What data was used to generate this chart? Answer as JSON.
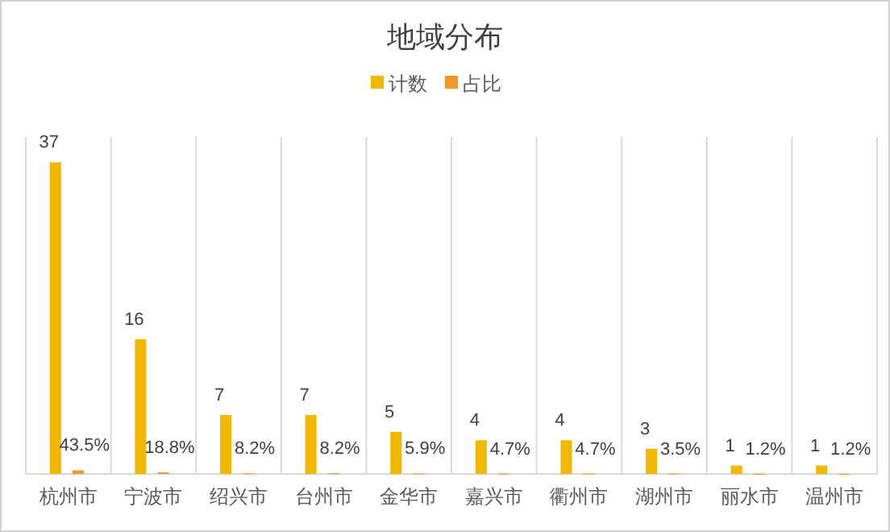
{
  "chart_data": {
    "type": "bar",
    "title": "地域分布",
    "categories": [
      "杭州市",
      "宁波市",
      "绍兴市",
      "台州市",
      "金华市",
      "嘉兴市",
      "衢州市",
      "湖州市",
      "丽水市",
      "温州市"
    ],
    "series": [
      {
        "name": "计数",
        "color": "#f2b800",
        "values": [
          37,
          16,
          7,
          7,
          5,
          4,
          4,
          3,
          1,
          1
        ],
        "value_labels": [
          "37",
          "16",
          "7",
          "7",
          "5",
          "4",
          "4",
          "3",
          "1",
          "1"
        ]
      },
      {
        "name": "占比",
        "color": "#f5962a",
        "values": [
          0.435,
          0.188,
          0.082,
          0.082,
          0.059,
          0.047,
          0.047,
          0.035,
          0.012,
          0.012
        ],
        "value_labels": [
          "43.5%",
          "18.8%",
          "8.2%",
          "8.2%",
          "5.9%",
          "4.7%",
          "4.7%",
          "3.5%",
          "1.2%",
          "1.2%"
        ]
      }
    ],
    "ylim": [
      0,
      40
    ],
    "tick_labels": "x",
    "grid": "x",
    "legend": "top"
  }
}
